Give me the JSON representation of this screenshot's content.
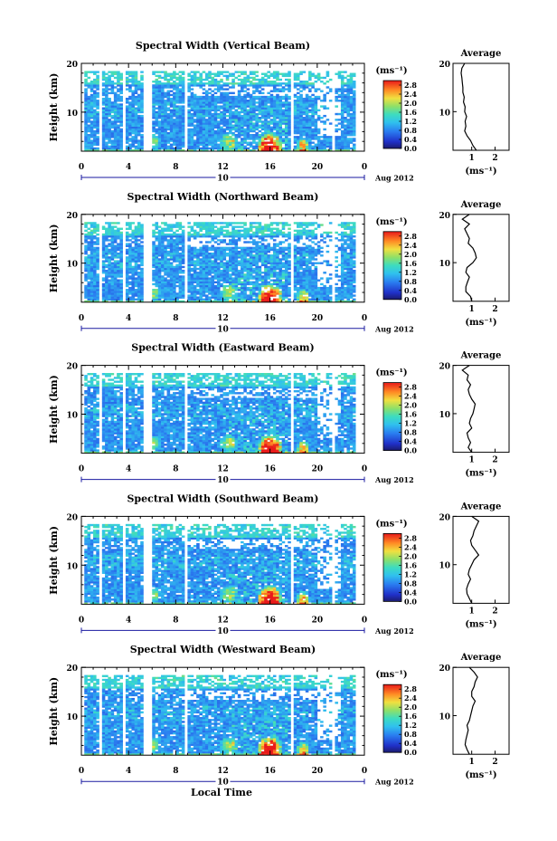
{
  "figure": {
    "xlabel": "Local Time",
    "date_label": "Aug 2012",
    "date_marker": "10",
    "colorbar_unit": "(ms⁻¹)",
    "average_title": "Average",
    "average_xlabel": "(ms⁻¹)"
  },
  "chart_data": [
    {
      "type": "heatmap",
      "title": "Spectral Width (Vertical Beam)",
      "xlabel": "Local Time",
      "ylabel": "Height (km)",
      "xlim": [
        0,
        24
      ],
      "ylim": [
        2,
        20
      ],
      "x_ticks": [
        "0",
        "4",
        "8",
        "12",
        "16",
        "20",
        "0"
      ],
      "y_ticks": [
        "20",
        "10"
      ],
      "colorbar": {
        "unit": "ms-1",
        "ticks": [
          "2.8",
          "2.4",
          "2.0",
          "1.6",
          "1.2",
          "0.8",
          "0.4",
          "0.0"
        ],
        "range": [
          0,
          3.0
        ]
      },
      "average_profile": {
        "xlim": [
          0.2,
          2.6
        ],
        "x_ticks": [
          "1",
          "2"
        ],
        "height": [
          2,
          3,
          4,
          5,
          6,
          7,
          8,
          9,
          10,
          11,
          12,
          13,
          14,
          15,
          16,
          17,
          18,
          19,
          20
        ],
        "value": [
          1.2,
          1.05,
          0.95,
          0.8,
          0.7,
          0.75,
          0.72,
          0.78,
          0.7,
          0.72,
          0.65,
          0.68,
          0.62,
          0.62,
          0.6,
          0.58,
          0.55,
          0.58,
          0.7
        ]
      }
    },
    {
      "type": "heatmap",
      "title": "Spectral Width (Northward Beam)",
      "xlabel": "Local Time",
      "ylabel": "Height (km)",
      "xlim": [
        0,
        24
      ],
      "ylim": [
        2,
        20
      ],
      "x_ticks": [
        "0",
        "4",
        "8",
        "12",
        "16",
        "20",
        "0"
      ],
      "y_ticks": [
        "20",
        "10"
      ],
      "colorbar": {
        "unit": "ms-1",
        "ticks": [
          "2.8",
          "2.4",
          "2.0",
          "1.6",
          "1.2",
          "0.8",
          "0.4",
          "0.0"
        ],
        "range": [
          0,
          3.0
        ]
      },
      "average_profile": {
        "xlim": [
          0.2,
          2.6
        ],
        "x_ticks": [
          "1",
          "2"
        ],
        "height": [
          2,
          3,
          4,
          5,
          6,
          7,
          8,
          9,
          10,
          11,
          12,
          13,
          14,
          15,
          16,
          17,
          18,
          19,
          20
        ],
        "value": [
          1.0,
          0.95,
          0.75,
          0.75,
          0.82,
          0.9,
          0.75,
          0.8,
          1.05,
          1.2,
          1.15,
          1.05,
          0.85,
          0.9,
          0.8,
          0.7,
          0.9,
          0.6,
          0.9
        ]
      }
    },
    {
      "type": "heatmap",
      "title": "Spectral Width (Eastward Beam)",
      "xlabel": "Local Time",
      "ylabel": "Height (km)",
      "xlim": [
        0,
        24
      ],
      "ylim": [
        2,
        20
      ],
      "x_ticks": [
        "0",
        "4",
        "8",
        "12",
        "16",
        "20",
        "0"
      ],
      "y_ticks": [
        "20",
        "10"
      ],
      "colorbar": {
        "unit": "ms-1",
        "ticks": [
          "2.8",
          "2.4",
          "2.0",
          "1.6",
          "1.2",
          "0.8",
          "0.4",
          "0.0"
        ],
        "range": [
          0,
          3.0
        ]
      },
      "average_profile": {
        "xlim": [
          0.2,
          2.6
        ],
        "x_ticks": [
          "1",
          "2"
        ],
        "height": [
          2,
          3,
          4,
          5,
          6,
          7,
          8,
          9,
          10,
          11,
          12,
          13,
          14,
          15,
          16,
          17,
          18,
          19,
          20
        ],
        "value": [
          1.0,
          0.85,
          0.95,
          0.85,
          0.8,
          1.0,
          0.9,
          0.95,
          1.05,
          1.1,
          1.15,
          1.0,
          0.9,
          0.85,
          0.95,
          0.8,
          0.85,
          0.6,
          0.9
        ]
      }
    },
    {
      "type": "heatmap",
      "title": "Spectral Width (Southward Beam)",
      "xlabel": "Local Time",
      "ylabel": "Height (km)",
      "xlim": [
        0,
        24
      ],
      "ylim": [
        2,
        20
      ],
      "x_ticks": [
        "0",
        "4",
        "8",
        "12",
        "16",
        "20",
        "0"
      ],
      "y_ticks": [
        "20",
        "10"
      ],
      "colorbar": {
        "unit": "ms-1",
        "ticks": [
          "2.8",
          "2.4",
          "2.0",
          "1.6",
          "1.2",
          "0.8",
          "0.4",
          "0.0"
        ],
        "range": [
          0,
          3.0
        ]
      },
      "average_profile": {
        "xlim": [
          0.2,
          2.6
        ],
        "x_ticks": [
          "1",
          "2"
        ],
        "height": [
          2,
          3,
          4,
          5,
          6,
          7,
          8,
          9,
          10,
          11,
          12,
          13,
          14,
          15,
          16,
          17,
          18,
          19,
          20
        ],
        "value": [
          1.0,
          0.9,
          0.8,
          0.78,
          0.85,
          0.95,
          0.85,
          0.9,
          1.0,
          1.1,
          1.3,
          1.15,
          1.0,
          0.95,
          1.05,
          1.1,
          1.2,
          1.3,
          1.0
        ]
      }
    },
    {
      "type": "heatmap",
      "title": "Spectral Width (Westward Beam)",
      "xlabel": "Local Time",
      "ylabel": "Height (km)",
      "xlim": [
        0,
        24
      ],
      "ylim": [
        2,
        20
      ],
      "x_ticks": [
        "0",
        "4",
        "8",
        "12",
        "16",
        "20",
        "0"
      ],
      "y_ticks": [
        "20",
        "10"
      ],
      "colorbar": {
        "unit": "ms-1",
        "ticks": [
          "2.8",
          "2.4",
          "2.0",
          "1.6",
          "1.2",
          "0.8",
          "0.4",
          "0.0"
        ],
        "range": [
          0,
          3.0
        ]
      },
      "average_profile": {
        "xlim": [
          0.2,
          2.6
        ],
        "x_ticks": [
          "1",
          "2"
        ],
        "height": [
          2,
          3,
          4,
          5,
          6,
          7,
          8,
          9,
          10,
          11,
          12,
          13,
          14,
          15,
          16,
          17,
          18,
          19,
          20
        ],
        "value": [
          0.9,
          0.8,
          0.72,
          0.75,
          0.8,
          0.85,
          0.8,
          0.9,
          0.95,
          1.0,
          1.05,
          1.15,
          1.0,
          1.0,
          1.1,
          1.15,
          1.25,
          1.1,
          0.9
        ]
      }
    }
  ]
}
